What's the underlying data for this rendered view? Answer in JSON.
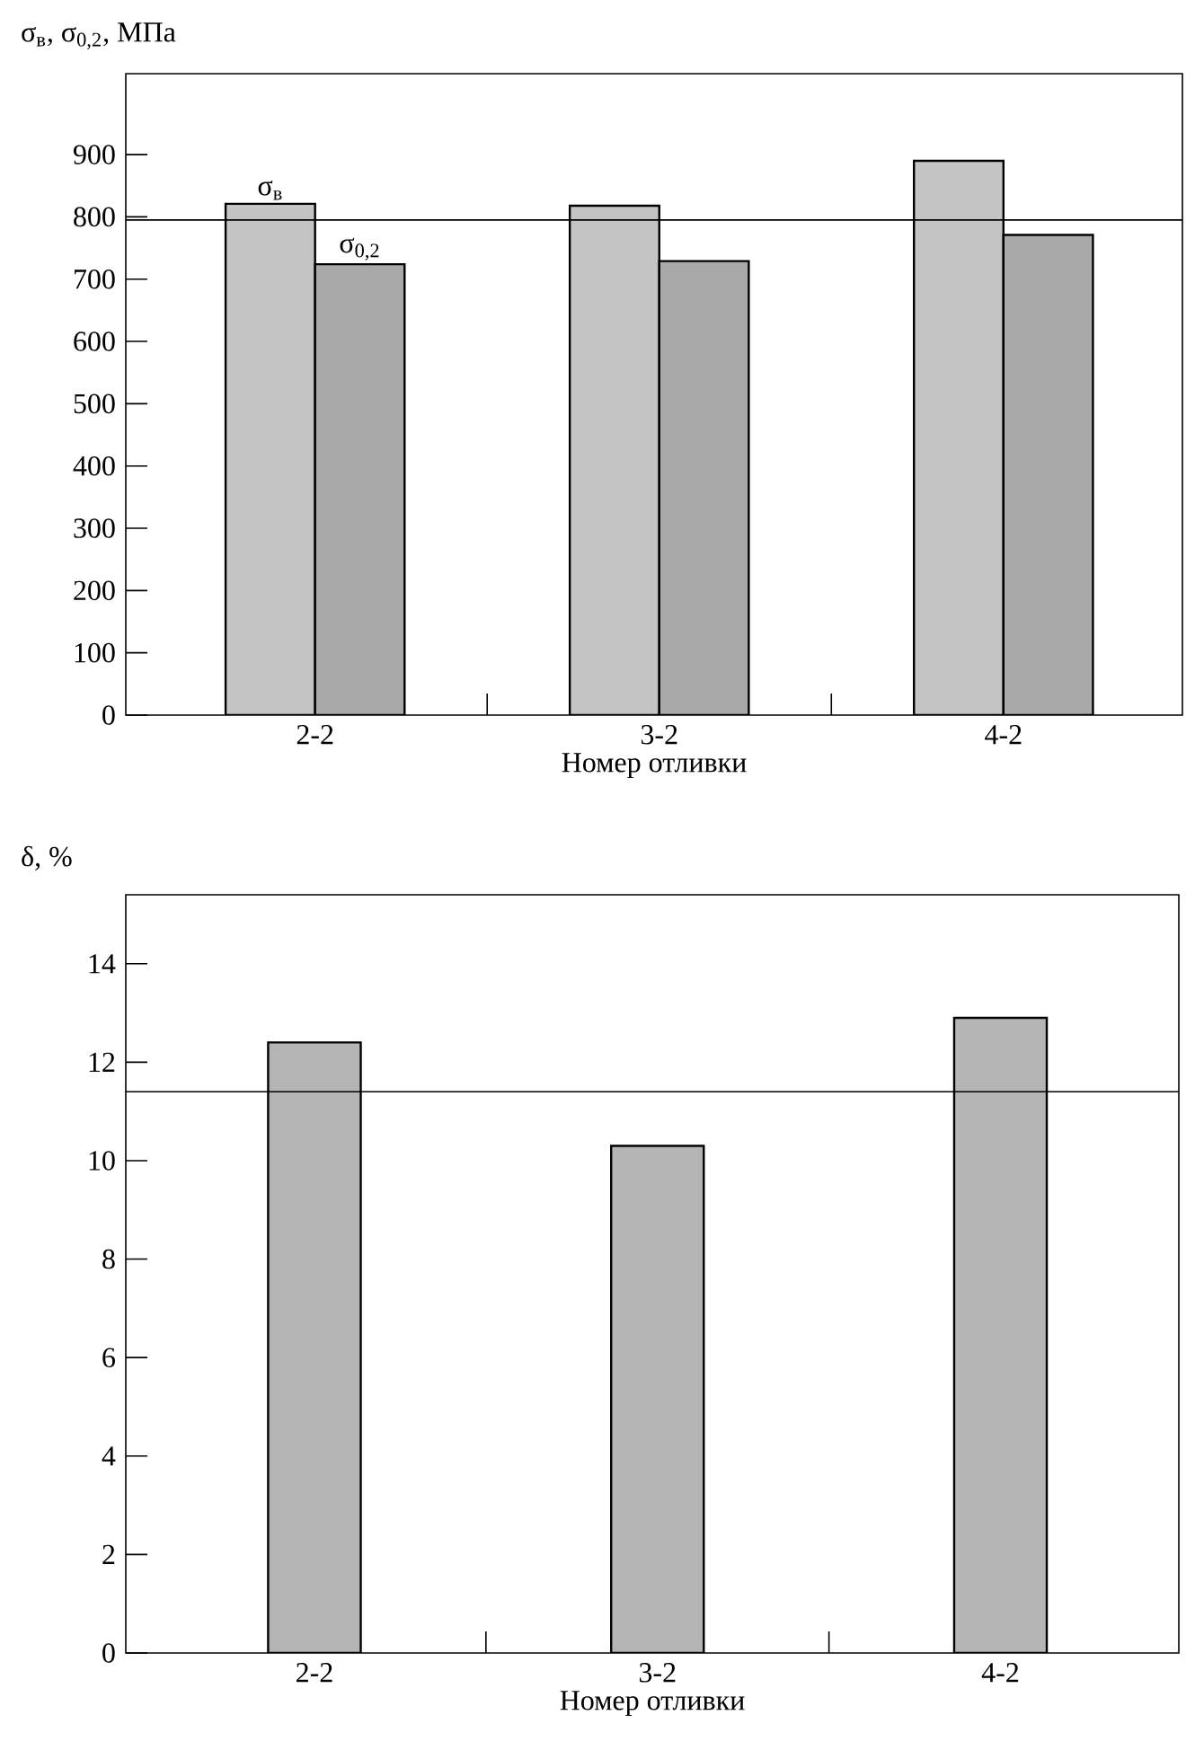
{
  "chart_data": [
    {
      "type": "bar",
      "ylabel": "σ$_{в}$, σ$_{0,2}$, МПа",
      "xlabel": "Номер отливки",
      "categories": [
        "2-2",
        "3-2",
        "4-2"
      ],
      "series": [
        {
          "name": "σ$_{в}$",
          "color": "#c4c4c4",
          "values": [
            821,
            818,
            890
          ]
        },
        {
          "name": "σ$_{0,2}$",
          "color": "#a9a9a9",
          "values": [
            724,
            729,
            771
          ]
        }
      ],
      "ylim": [
        0,
        1030
      ],
      "yticks": [
        0,
        100,
        200,
        300,
        400,
        500,
        600,
        700,
        800,
        900
      ],
      "grid": false,
      "ref_lines": [
        {
          "axis": "y",
          "value": 795
        }
      ]
    },
    {
      "type": "bar",
      "ylabel": "δ, %",
      "xlabel": "Номер отливки",
      "categories": [
        "2-2",
        "3-2",
        "4-2"
      ],
      "series": [
        {
          "color": "#b4b4b4",
          "values": [
            12.4,
            10.3,
            12.9
          ]
        }
      ],
      "ylim": [
        0,
        15.4
      ],
      "yticks": [
        0,
        2,
        4,
        6,
        8,
        10,
        12,
        14
      ],
      "grid": false,
      "ref_lines": [
        {
          "axis": "y",
          "value": 11.4
        }
      ]
    }
  ]
}
